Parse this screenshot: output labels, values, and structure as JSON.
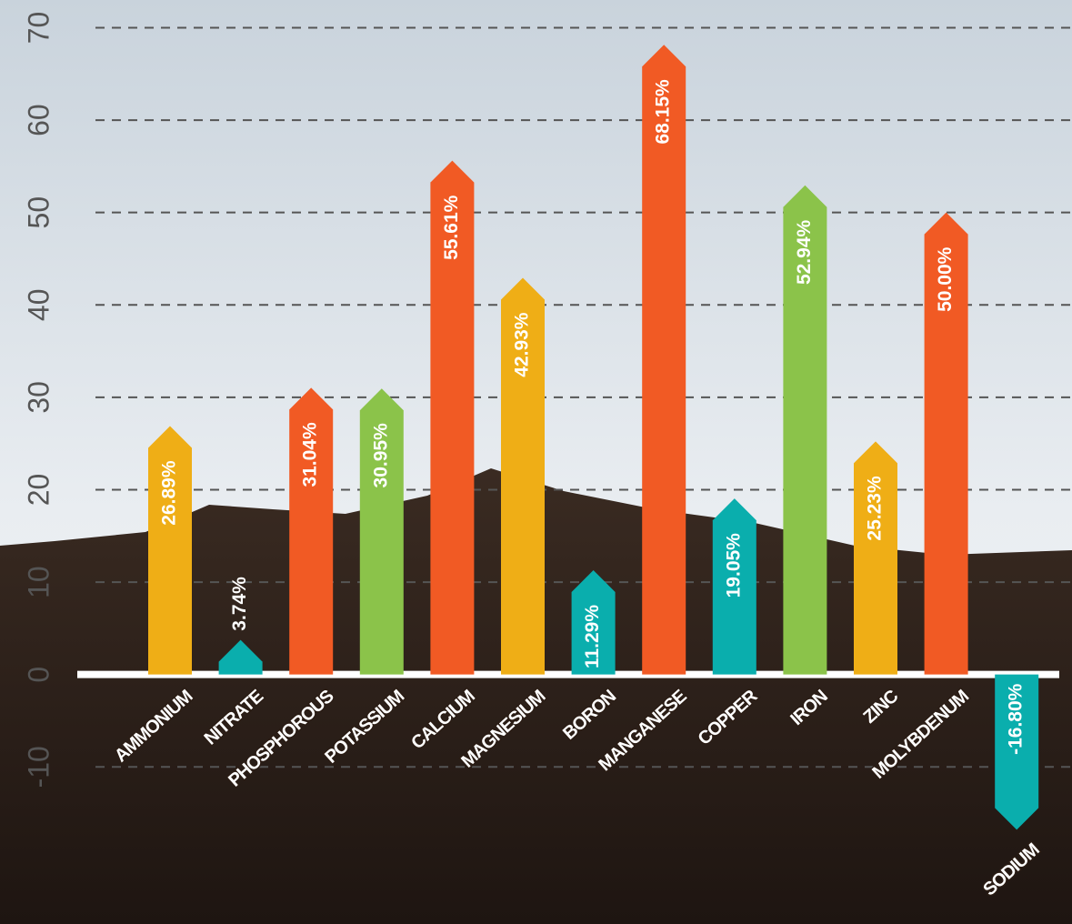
{
  "chart_data": {
    "type": "bar",
    "categories": [
      "AMMONIUM",
      "NITRATE",
      "PHOSPHOROUS",
      "POTASSIUM",
      "CALCIUM",
      "MAGNESIUM",
      "BORON",
      "MANGANESE",
      "COPPER",
      "IRON",
      "ZINC",
      "MOLYBDENUM",
      "SODIUM"
    ],
    "values": [
      26.89,
      3.74,
      31.04,
      30.95,
      55.61,
      42.93,
      11.29,
      68.15,
      19.05,
      52.94,
      25.23,
      50.0,
      -16.8
    ],
    "value_labels": [
      "26.89%",
      "3.74%",
      "31.04%",
      "30.95%",
      "55.61%",
      "42.93%",
      "11.29%",
      "68.15%",
      "19.05%",
      "52.94%",
      "25.23%",
      "50.00%",
      "-16.80%"
    ],
    "colors": [
      "#efae16",
      "#0aaead",
      "#f15a24",
      "#8bc34a",
      "#f15a24",
      "#efae16",
      "#0aaead",
      "#f15a24",
      "#0aaead",
      "#8bc34a",
      "#efae16",
      "#f15a24",
      "#0aaead"
    ],
    "ylim": [
      -27,
      73
    ],
    "yticks": [
      -10,
      0,
      10,
      20,
      30,
      40,
      50,
      60,
      70
    ],
    "grid": true
  }
}
